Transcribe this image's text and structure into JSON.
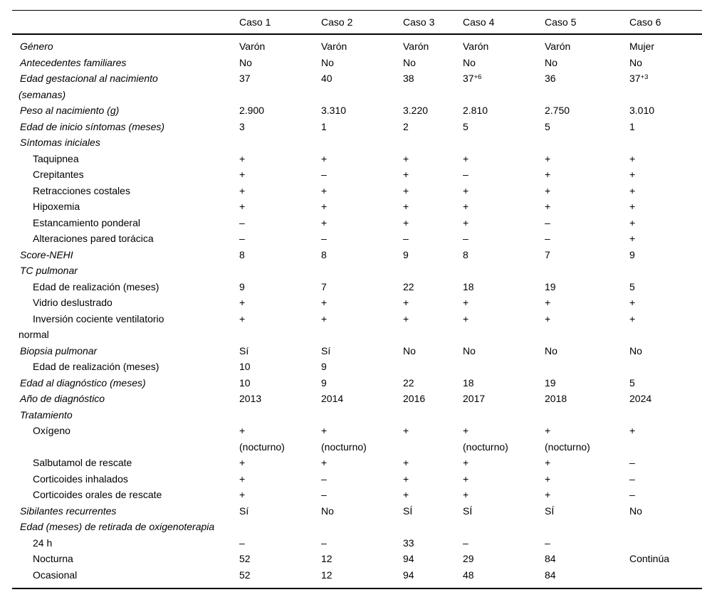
{
  "table": {
    "columns": [
      "",
      "Caso 1",
      "Caso 2",
      "Caso 3",
      "Caso 4",
      "Caso 5",
      "Caso 6"
    ],
    "rows": [
      {
        "label": "Género",
        "italic": true,
        "indent": false,
        "values": [
          "Varón",
          "Varón",
          "Varón",
          "Varón",
          "Varón",
          "Mujer"
        ]
      },
      {
        "label": "Antecedentes familiares",
        "italic": true,
        "indent": false,
        "values": [
          "No",
          "No",
          "No",
          "No",
          "No",
          "No"
        ]
      },
      {
        "label": "Edad gestacional al nacimiento",
        "label2": "(semanas)",
        "italic": true,
        "indent": false,
        "values": [
          "37",
          "40",
          "38",
          "37^+6",
          "36",
          "37^+3"
        ]
      },
      {
        "label": "Peso al nacimiento (g)",
        "italic": true,
        "indent": false,
        "values": [
          "2.900",
          "3.310",
          "3.220",
          "2.810",
          "2.750",
          "3.010"
        ]
      },
      {
        "label": "Edad de inicio síntomas (meses)",
        "italic": true,
        "indent": false,
        "values": [
          "3",
          "1",
          "2",
          "5",
          "5",
          "1"
        ]
      },
      {
        "label": "Síntomas iniciales",
        "italic": true,
        "indent": false,
        "values": [
          "",
          "",
          "",
          "",
          "",
          ""
        ]
      },
      {
        "label": "Taquipnea",
        "italic": false,
        "indent": true,
        "values": [
          "+",
          "+",
          "+",
          "+",
          "+",
          "+"
        ]
      },
      {
        "label": "Crepitantes",
        "italic": false,
        "indent": true,
        "values": [
          "+",
          "–",
          "+",
          "–",
          "+",
          "+"
        ]
      },
      {
        "label": "Retracciones costales",
        "italic": false,
        "indent": true,
        "values": [
          "+",
          "+",
          "+",
          "+",
          "+",
          "+"
        ]
      },
      {
        "label": "Hipoxemia",
        "italic": false,
        "indent": true,
        "values": [
          "+",
          "+",
          "+",
          "+",
          "+",
          "+"
        ]
      },
      {
        "label": "Estancamiento ponderal",
        "italic": false,
        "indent": true,
        "values": [
          "–",
          "+",
          "+",
          "+",
          "–",
          "+"
        ]
      },
      {
        "label": "Alteraciones pared torácica",
        "italic": false,
        "indent": true,
        "values": [
          "–",
          "–",
          "–",
          "–",
          "–",
          "+"
        ]
      },
      {
        "label": "Score-NEHI",
        "italic": true,
        "indent": false,
        "values": [
          "8",
          "8",
          "9",
          "8",
          "7",
          "9"
        ]
      },
      {
        "label": "TC pulmonar",
        "italic": true,
        "indent": false,
        "values": [
          "",
          "",
          "",
          "",
          "",
          ""
        ]
      },
      {
        "label": "Edad de realización (meses)",
        "italic": false,
        "indent": true,
        "values": [
          "9",
          "7",
          "22",
          "18",
          "19",
          "5"
        ]
      },
      {
        "label": "Vidrio deslustrado",
        "italic": false,
        "indent": true,
        "values": [
          "+",
          "+",
          "+",
          "+",
          "+",
          "+"
        ]
      },
      {
        "label": "Inversión cociente ventilatorio",
        "label2": "normal",
        "italic": false,
        "indent": true,
        "values": [
          "+",
          "+",
          "+",
          "+",
          "+",
          "+"
        ]
      },
      {
        "label": "Biopsia pulmonar",
        "italic": true,
        "indent": false,
        "values": [
          "Sí",
          "Sí",
          "No",
          "No",
          "No",
          "No"
        ]
      },
      {
        "label": "Edad de realización (meses)",
        "italic": false,
        "indent": true,
        "values": [
          "10",
          "9",
          "",
          "",
          "",
          ""
        ]
      },
      {
        "label": "Edad al diagnóstico (meses)",
        "italic": true,
        "indent": false,
        "values": [
          "10",
          "9",
          "22",
          "18",
          "19",
          "5"
        ]
      },
      {
        "label": "Año de diagnóstico",
        "italic": true,
        "indent": false,
        "values": [
          "2013",
          "2014",
          "2016",
          "2017",
          "2018",
          "2024"
        ]
      },
      {
        "label": "Tratamiento",
        "italic": true,
        "indent": false,
        "values": [
          "",
          "",
          "",
          "",
          "",
          ""
        ]
      },
      {
        "label": "Oxígeno",
        "italic": false,
        "indent": true,
        "values": [
          "+",
          "+",
          "+",
          "+",
          "+",
          "+"
        ],
        "values2": [
          "(nocturno)",
          "(nocturno)",
          "",
          "(nocturno)",
          "(nocturno)",
          ""
        ]
      },
      {
        "label": "Salbutamol de rescate",
        "italic": false,
        "indent": true,
        "values": [
          "+",
          "+",
          "+",
          "+",
          "+",
          "–"
        ]
      },
      {
        "label": "Corticoides inhalados",
        "italic": false,
        "indent": true,
        "values": [
          "+",
          "–",
          "+",
          "+",
          "+",
          "–"
        ]
      },
      {
        "label": "Corticoides orales de rescate",
        "italic": false,
        "indent": true,
        "values": [
          "+",
          "–",
          "+",
          "+",
          "+",
          "–"
        ]
      },
      {
        "label": "Sibilantes recurrentes",
        "italic": true,
        "indent": false,
        "values": [
          "Sí",
          "No",
          "SÍ",
          "SÍ",
          "SÍ",
          "No"
        ]
      },
      {
        "label": "Edad (meses) de retirada de oxigenoterapia",
        "italic": true,
        "indent": false,
        "values": [
          "",
          "",
          "",
          "",
          "",
          ""
        ]
      },
      {
        "label": "24 h",
        "italic": false,
        "indent": true,
        "values": [
          "–",
          "–",
          "33",
          "–",
          "–",
          ""
        ]
      },
      {
        "label": "Nocturna",
        "italic": false,
        "indent": true,
        "values": [
          "52",
          "12",
          "94",
          "29",
          "84",
          "Continúa"
        ]
      },
      {
        "label": "Ocasional",
        "italic": false,
        "indent": true,
        "values": [
          "52",
          "12",
          "94",
          "48",
          "84",
          ""
        ]
      }
    ]
  }
}
